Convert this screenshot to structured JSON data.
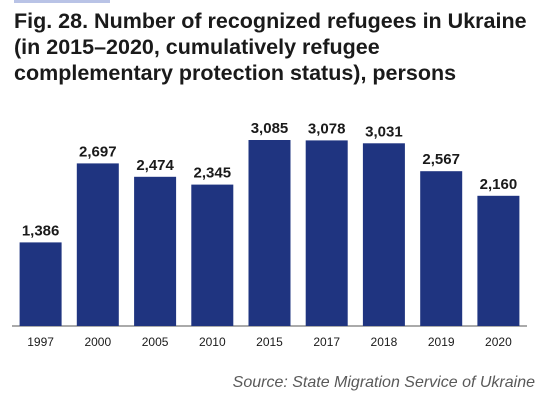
{
  "title": "Fig. 28. Number of recognized refugees in Ukraine (in 2015–2020, cumulatively refugee complementary protection status), persons",
  "source": "Source: State Migration Service of Ukraine",
  "colors": {
    "bar": "#1f3480",
    "axis": "#555555",
    "accent": "#b9c3e6"
  },
  "chart_data": {
    "type": "bar",
    "title": "Fig. 28. Number of recognized refugees in Ukraine (in 2015–2020, cumulatively refugee complementary protection status), persons",
    "xlabel": "",
    "ylabel": "",
    "categories": [
      "1997",
      "2000",
      "2005",
      "2010",
      "2015",
      "2017",
      "2018",
      "2019",
      "2020"
    ],
    "values": [
      1386,
      2697,
      2474,
      2345,
      3085,
      3078,
      3031,
      2567,
      2160
    ],
    "value_labels": [
      "1,386",
      "2,697",
      "2,474",
      "2,345",
      "3,085",
      "3,078",
      "3,031",
      "2,567",
      "2,160"
    ],
    "ylim": [
      0,
      3500
    ],
    "grid": false,
    "legend": "none"
  }
}
